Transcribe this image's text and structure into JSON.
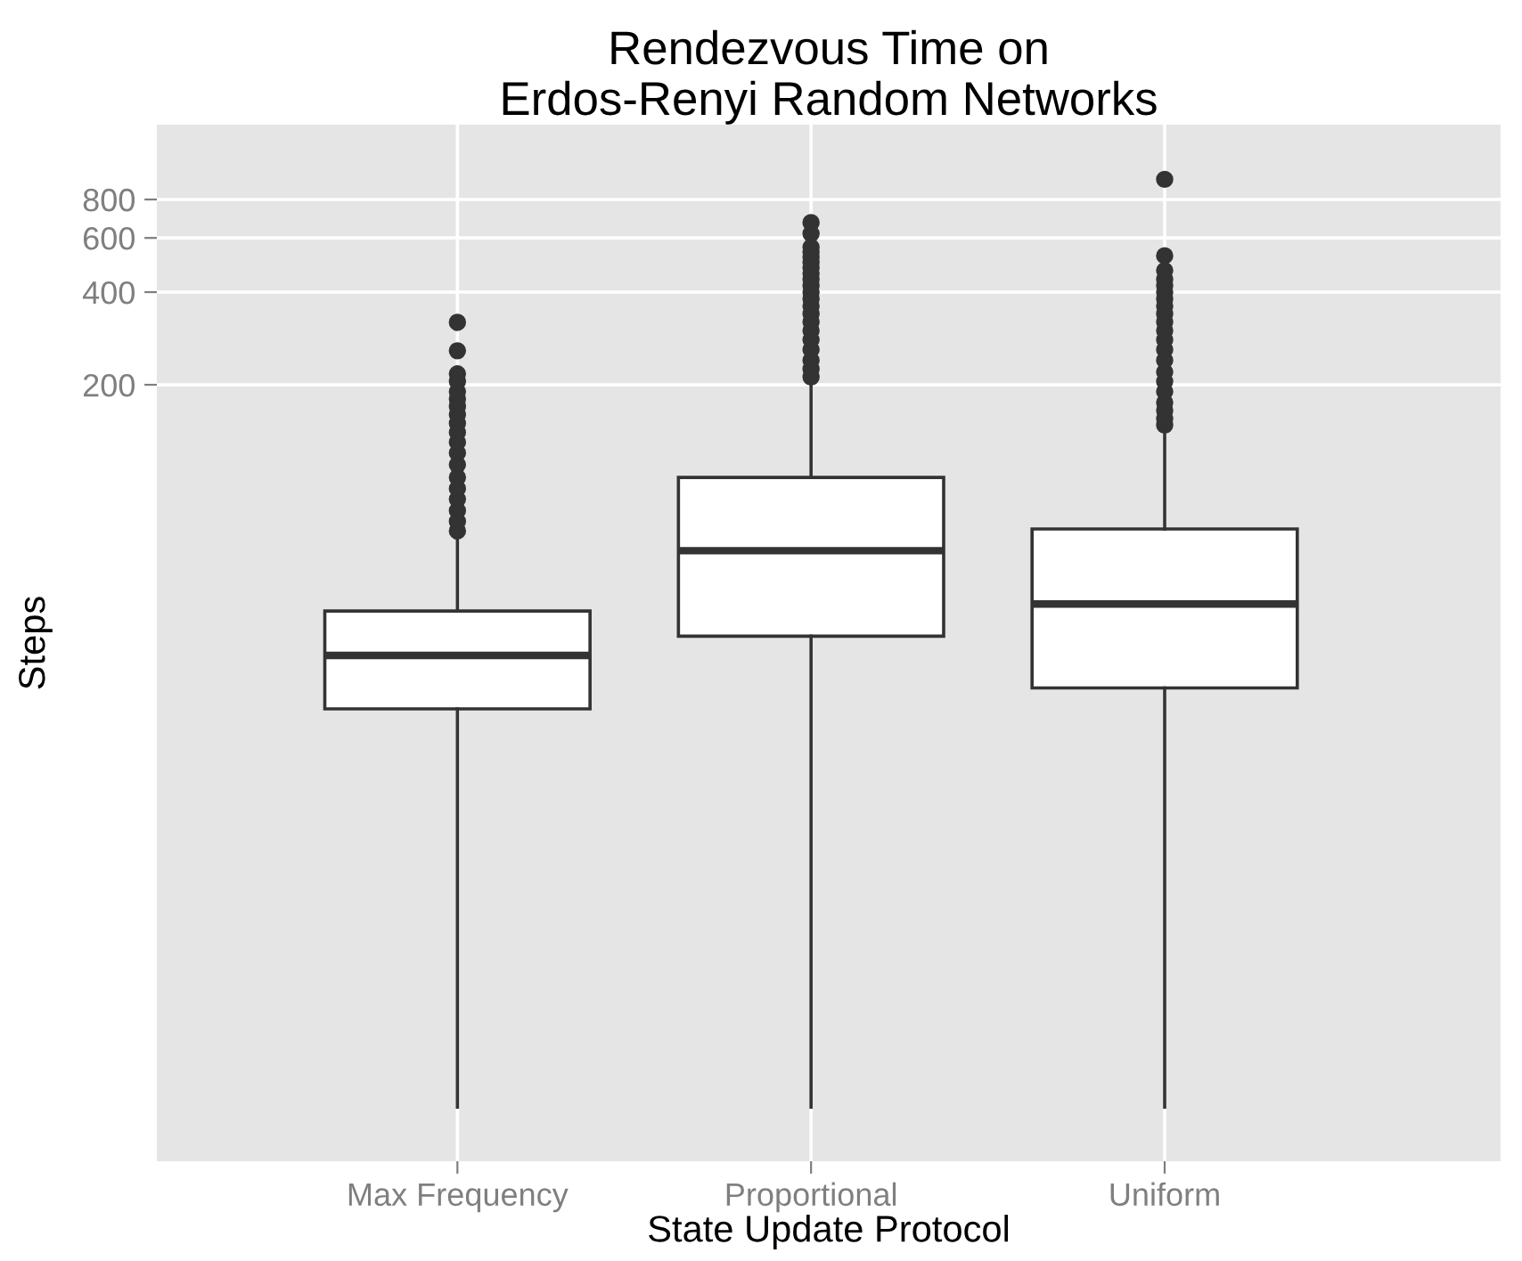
{
  "chart_data": {
    "type": "box",
    "title": "Rendezvous Time on\nErdos-Renyi Random Networks",
    "xlabel": "State Update Protocol",
    "ylabel": "Steps",
    "categories": [
      "Max Frequency",
      "Proportional",
      "Uniform"
    ],
    "boxes": [
      {
        "low": 0.9,
        "q1": 17.7,
        "median": 26.4,
        "q3": 36.8,
        "high": 66,
        "outliers": [
          67,
          72,
          78,
          85,
          92,
          100,
          110,
          120,
          130,
          140,
          150,
          160,
          170,
          180,
          190,
          205,
          217,
          258,
          319
        ]
      },
      {
        "low": 0.9,
        "q1": 30.5,
        "median": 57.8,
        "q3": 100,
        "high": 208,
        "outliers": [
          212,
          225,
          240,
          260,
          280,
          300,
          320,
          340,
          360,
          380,
          400,
          420,
          440,
          460,
          480,
          500,
          520,
          540,
          560,
          620,
          673
        ]
      },
      {
        "low": 0.9,
        "q1": 20.7,
        "median": 38.8,
        "q3": 68,
        "high": 145,
        "outliers": [
          148,
          155,
          165,
          175,
          190,
          205,
          220,
          240,
          260,
          280,
          300,
          320,
          340,
          360,
          380,
          400,
          420,
          440,
          470,
          525,
          930
        ]
      }
    ],
    "log": "y",
    "ylim": [
      0.6,
      1400
    ],
    "yticks": [
      200,
      400,
      600,
      800
    ],
    "grid": true
  }
}
